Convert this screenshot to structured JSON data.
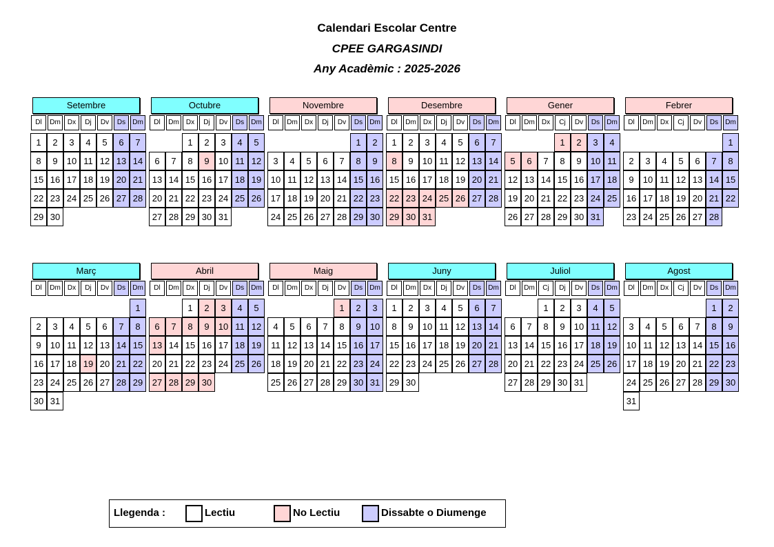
{
  "header": {
    "title": "Calendari Escolar Centre",
    "school": "CPEE GARGASINDI",
    "year": "Any Acadèmic : 2025-2026"
  },
  "colors": {
    "lectiu": "#ffffff",
    "no_lectiu": "#ffd6d6",
    "weekend": "#ccccff"
  },
  "months": [
    {
      "name": "Setembre",
      "header_color": "#80ffff",
      "weekdays": [
        "Dl",
        "Dm",
        "Dx",
        "Dj",
        "Dv",
        "Ds",
        "Dm"
      ],
      "no_lectiu": [],
      "weeks": [
        [
          1,
          2,
          3,
          4,
          5,
          6,
          7
        ],
        [
          8,
          9,
          10,
          11,
          12,
          13,
          14
        ],
        [
          15,
          16,
          17,
          18,
          19,
          20,
          21
        ],
        [
          22,
          23,
          24,
          25,
          26,
          27,
          28
        ],
        [
          29,
          30,
          null,
          null,
          null,
          null,
          null
        ]
      ]
    },
    {
      "name": "Octubre",
      "header_color": "#80ffff",
      "weekdays": [
        "Dl",
        "Dm",
        "Dx",
        "Dj",
        "Dv",
        "Ds",
        "Dm"
      ],
      "no_lectiu": [
        9
      ],
      "weeks": [
        [
          null,
          null,
          1,
          2,
          3,
          4,
          5
        ],
        [
          6,
          7,
          8,
          9,
          10,
          11,
          12
        ],
        [
          13,
          14,
          15,
          16,
          17,
          18,
          19
        ],
        [
          20,
          21,
          22,
          23,
          24,
          25,
          26
        ],
        [
          27,
          28,
          29,
          30,
          31,
          null,
          null
        ]
      ]
    },
    {
      "name": "Novembre",
      "header_color": "#ffd6d6",
      "weekdays": [
        "Dl",
        "Dm",
        "Dx",
        "Dj",
        "Dv",
        "Ds",
        "Dm"
      ],
      "no_lectiu": [],
      "weeks": [
        [
          null,
          null,
          null,
          null,
          null,
          1,
          2
        ],
        [
          3,
          4,
          5,
          6,
          7,
          8,
          9
        ],
        [
          10,
          11,
          12,
          13,
          14,
          15,
          16
        ],
        [
          17,
          18,
          19,
          20,
          21,
          22,
          23
        ],
        [
          24,
          25,
          26,
          27,
          28,
          29,
          30
        ]
      ]
    },
    {
      "name": "Desembre",
      "header_color": "#ffd6d6",
      "weekdays": [
        "Dl",
        "Dm",
        "Dx",
        "Dj",
        "Dv",
        "Ds",
        "Dm"
      ],
      "no_lectiu": [
        8,
        22,
        23,
        24,
        25,
        26,
        29,
        30,
        31
      ],
      "weeks": [
        [
          1,
          2,
          3,
          4,
          5,
          6,
          7
        ],
        [
          8,
          9,
          10,
          11,
          12,
          13,
          14
        ],
        [
          15,
          16,
          17,
          18,
          19,
          20,
          21
        ],
        [
          22,
          23,
          24,
          25,
          26,
          27,
          28
        ],
        [
          29,
          30,
          31,
          null,
          null,
          null,
          null
        ]
      ]
    },
    {
      "name": "Gener",
      "header_color": "#ffd6d6",
      "weekdays": [
        "Dl",
        "Dm",
        "Dx",
        "Cj",
        "Dv",
        "Ds",
        "Dm"
      ],
      "no_lectiu": [
        1,
        2,
        5,
        6
      ],
      "weeks": [
        [
          null,
          null,
          null,
          1,
          2,
          3,
          4
        ],
        [
          5,
          6,
          7,
          8,
          9,
          10,
          11
        ],
        [
          12,
          13,
          14,
          15,
          16,
          17,
          18
        ],
        [
          19,
          20,
          21,
          22,
          23,
          24,
          25
        ],
        [
          26,
          27,
          28,
          29,
          30,
          31,
          null
        ]
      ]
    },
    {
      "name": "Febrer",
      "header_color": "#ffd6d6",
      "weekdays": [
        "Dl",
        "Dm",
        "Dx",
        "Cj",
        "Dv",
        "Ds",
        "Dm"
      ],
      "no_lectiu": [],
      "weeks": [
        [
          null,
          null,
          null,
          null,
          null,
          null,
          1
        ],
        [
          2,
          3,
          4,
          5,
          6,
          7,
          8
        ],
        [
          9,
          10,
          11,
          12,
          13,
          14,
          15
        ],
        [
          16,
          17,
          18,
          19,
          20,
          21,
          22
        ],
        [
          23,
          24,
          25,
          26,
          27,
          28,
          null
        ]
      ]
    },
    {
      "name": "Març",
      "header_color": "#80ffff",
      "weekdays": [
        "Dl",
        "Dm",
        "Dx",
        "Dj",
        "Dv",
        "Ds",
        "Dm"
      ],
      "no_lectiu": [
        19
      ],
      "weeks": [
        [
          null,
          null,
          null,
          null,
          null,
          null,
          1
        ],
        [
          2,
          3,
          4,
          5,
          6,
          7,
          8
        ],
        [
          9,
          10,
          11,
          12,
          13,
          14,
          15
        ],
        [
          16,
          17,
          18,
          19,
          20,
          21,
          22
        ],
        [
          23,
          24,
          25,
          26,
          27,
          28,
          29
        ],
        [
          30,
          31,
          null,
          null,
          null,
          null,
          null
        ]
      ]
    },
    {
      "name": "Abril",
      "header_color": "#ffd6d6",
      "weekdays": [
        "Dl",
        "Dm",
        "Dx",
        "Dj",
        "Dv",
        "Ds",
        "Dm"
      ],
      "no_lectiu": [
        2,
        3,
        6,
        7,
        8,
        9,
        10,
        13,
        27,
        28,
        29,
        30
      ],
      "weeks": [
        [
          null,
          null,
          1,
          2,
          3,
          4,
          5
        ],
        [
          6,
          7,
          8,
          9,
          10,
          11,
          12
        ],
        [
          13,
          14,
          15,
          16,
          17,
          18,
          19
        ],
        [
          20,
          21,
          22,
          23,
          24,
          25,
          26
        ],
        [
          27,
          28,
          29,
          30,
          null,
          null,
          null
        ]
      ]
    },
    {
      "name": "Maig",
      "header_color": "#ffd6d6",
      "weekdays": [
        "Dl",
        "Dm",
        "Dx",
        "Dj",
        "Dv",
        "Ds",
        "Dm"
      ],
      "no_lectiu": [
        1
      ],
      "weeks": [
        [
          null,
          null,
          null,
          null,
          1,
          2,
          3
        ],
        [
          4,
          5,
          6,
          7,
          8,
          9,
          10
        ],
        [
          11,
          12,
          13,
          14,
          15,
          16,
          17
        ],
        [
          18,
          19,
          20,
          21,
          22,
          23,
          24
        ],
        [
          25,
          26,
          27,
          28,
          29,
          30,
          31
        ]
      ]
    },
    {
      "name": "Juny",
      "header_color": "#80ffff",
      "weekdays": [
        "Dl",
        "Dm",
        "Dx",
        "Dj",
        "Dv",
        "Ds",
        "Dm"
      ],
      "no_lectiu": [],
      "weeks": [
        [
          1,
          2,
          3,
          4,
          5,
          6,
          7
        ],
        [
          8,
          9,
          10,
          11,
          12,
          13,
          14
        ],
        [
          15,
          16,
          17,
          18,
          19,
          20,
          21
        ],
        [
          22,
          23,
          24,
          25,
          26,
          27,
          28
        ],
        [
          29,
          30,
          null,
          null,
          null,
          null,
          null
        ]
      ]
    },
    {
      "name": "Juliol",
      "header_color": "#80ffff",
      "weekdays": [
        "Dl",
        "Dm",
        "Cj",
        "Dj",
        "Dv",
        "Ds",
        "Dm"
      ],
      "no_lectiu": [],
      "weeks": [
        [
          null,
          null,
          1,
          2,
          3,
          4,
          5
        ],
        [
          6,
          7,
          8,
          9,
          10,
          11,
          12
        ],
        [
          13,
          14,
          15,
          16,
          17,
          18,
          19
        ],
        [
          20,
          21,
          22,
          23,
          24,
          25,
          26
        ],
        [
          27,
          28,
          29,
          30,
          31,
          null,
          null
        ]
      ]
    },
    {
      "name": "Agost",
      "header_color": "#80ffff",
      "weekdays": [
        "Dl",
        "Dm",
        "Dx",
        "Cj",
        "Dv",
        "Ds",
        "Dm"
      ],
      "no_lectiu": [],
      "weeks": [
        [
          null,
          null,
          null,
          null,
          null,
          1,
          2
        ],
        [
          3,
          4,
          5,
          6,
          7,
          8,
          9
        ],
        [
          10,
          11,
          12,
          13,
          14,
          15,
          16
        ],
        [
          17,
          18,
          19,
          20,
          21,
          22,
          23
        ],
        [
          24,
          25,
          26,
          27,
          28,
          29,
          30
        ],
        [
          31,
          null,
          null,
          null,
          null,
          null,
          null
        ]
      ]
    }
  ],
  "legend": {
    "title": "Llegenda :",
    "lectiu": "Lectiu",
    "no_lectiu": "No Lectiu",
    "weekend": "Dissabte o Diumenge"
  }
}
